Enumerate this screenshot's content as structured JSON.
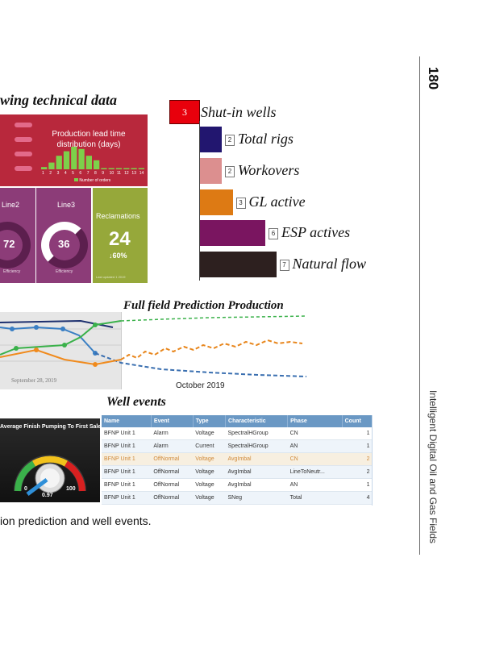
{
  "page": {
    "number": "180",
    "running_header": "Intelligent Digital Oil and Gas Fields",
    "caption_fragment": "ion prediction and well events."
  },
  "dashboard": {
    "heading": "wing technical data",
    "lead_time_title": "Production lead time distribution (days)",
    "lead_time_axis": [
      "1",
      "2",
      "3",
      "4",
      "5",
      "6",
      "7",
      "8",
      "9",
      "10",
      "11",
      "12",
      "13",
      "14"
    ],
    "lead_time_values": [
      1,
      3,
      6,
      8,
      10,
      9,
      6,
      4,
      0,
      0,
      0,
      0,
      0,
      0
    ],
    "lead_time_legend": "Number of orders",
    "line2": {
      "title": "Line2",
      "value": "72",
      "sub": "Efficiency"
    },
    "line3": {
      "title": "Line3",
      "value": "36",
      "sub": "Efficiency"
    },
    "reclamations": {
      "title": "Reclamations",
      "value": "24",
      "change": "↓60%",
      "footer": "Last updated 1 2019"
    },
    "colors": {
      "crimson": "#b8283c",
      "purple": "#8c3c78",
      "olive": "#96a83a"
    }
  },
  "rig_chart": {
    "items": [
      {
        "label": "Shut-in wells",
        "value": "3",
        "color": "#e8000c"
      },
      {
        "label": "Total rigs",
        "value": "2",
        "color": "#22166f"
      },
      {
        "label": "Workovers",
        "value": "2",
        "color": "#dc8f8f"
      },
      {
        "label": "GL active",
        "value": "3",
        "color": "#dd7a14"
      },
      {
        "label": "ESP actives",
        "value": "6",
        "color": "#7a1560"
      },
      {
        "label": "Natural flow",
        "value": "7",
        "color": "#2d201f"
      }
    ]
  },
  "prediction": {
    "title": "Full field Prediction Production",
    "date_left": "September 28, 2019",
    "date_right": "October 2019"
  },
  "gauge": {
    "title": "Average Finish Pumping To First Sales",
    "min": "0",
    "max": "100",
    "value": "0.97"
  },
  "well_events": {
    "title": "Well events",
    "headers": [
      "Name",
      "Event",
      "Type",
      "Characteristic",
      "Phase",
      "Count"
    ],
    "rows": [
      [
        "BFNP Unit 1",
        "Alarm",
        "Voltage",
        "SpectralHGroup",
        "CN",
        "1"
      ],
      [
        "BFNP Unit 1",
        "Alarm",
        "Current",
        "SpectralHGroup",
        "AN",
        "1"
      ],
      [
        "BFNP Unit 1",
        "OffNormal",
        "Voltage",
        "AvgImbal",
        "CN",
        "2"
      ],
      [
        "BFNP Unit 1",
        "OffNormal",
        "Voltage",
        "AvgImbal",
        "LineToNeutr...",
        "2"
      ],
      [
        "BFNP Unit 1",
        "OffNormal",
        "Voltage",
        "AvgImbal",
        "AN",
        "1"
      ],
      [
        "BFNP Unit 1",
        "OffNormal",
        "Voltage",
        "SNeg",
        "Total",
        "4"
      ]
    ]
  }
}
